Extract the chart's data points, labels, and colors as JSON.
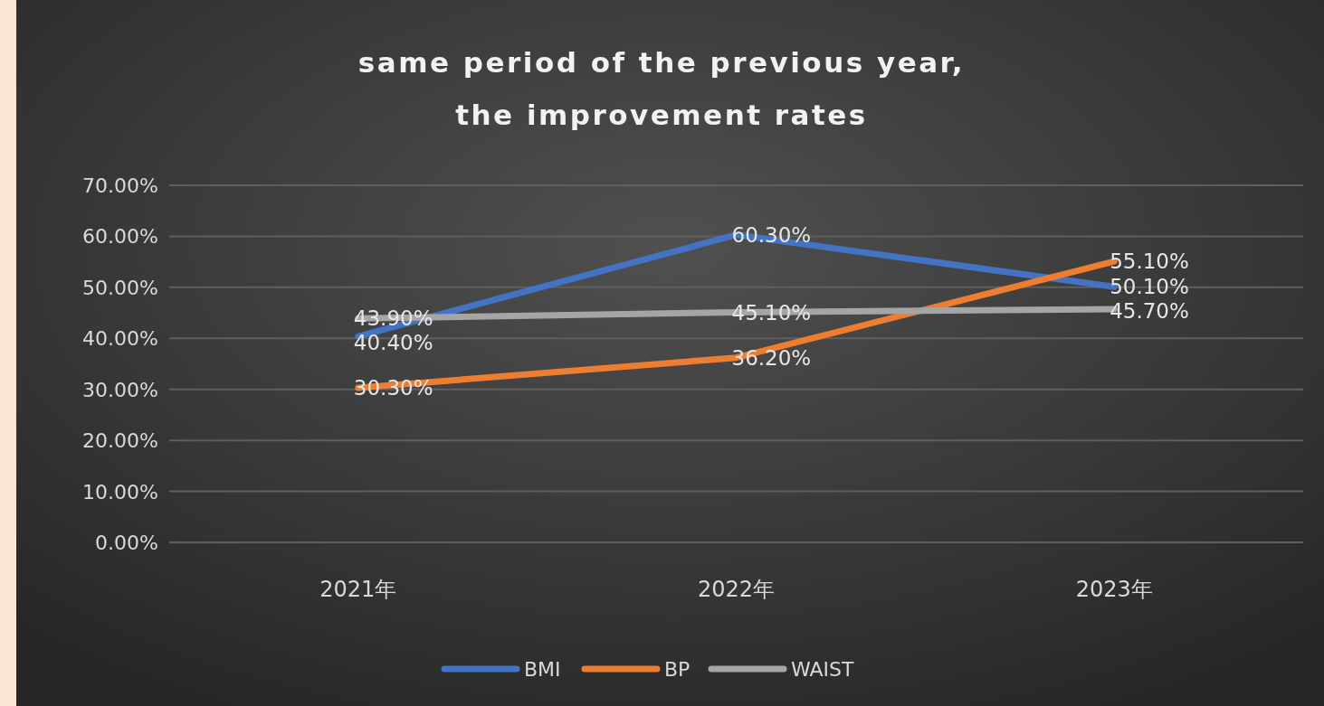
{
  "chart_data": {
    "type": "line",
    "title": "same period of the previous year,\nthe improvement rates",
    "categories": [
      "2021年",
      "2022年",
      "2023年"
    ],
    "series": [
      {
        "name": "BMI",
        "color": "#4472c4",
        "values": [
          40.4,
          60.3,
          50.1
        ],
        "value_labels": [
          "40.40%",
          "60.30%",
          "50.10%"
        ]
      },
      {
        "name": "BP",
        "color": "#ed7d31",
        "values": [
          30.3,
          36.2,
          55.1
        ],
        "value_labels": [
          "30.30%",
          "36.20%",
          "55.10%"
        ]
      },
      {
        "name": "WAIST",
        "color": "#a5a5a5",
        "values": [
          43.9,
          45.1,
          45.7
        ],
        "value_labels": [
          "43.90%",
          "45.10%",
          "45.70%"
        ]
      }
    ],
    "ylim": [
      0,
      70
    ],
    "yticks": [
      {
        "value": 0,
        "label": "0.00%"
      },
      {
        "value": 10,
        "label": "10.00%"
      },
      {
        "value": 20,
        "label": "20.00%"
      },
      {
        "value": 30,
        "label": "30.00%"
      },
      {
        "value": 40,
        "label": "40.00%"
      },
      {
        "value": 50,
        "label": "50.00%"
      },
      {
        "value": 60,
        "label": "60.00%"
      },
      {
        "value": 70,
        "label": "70.00%"
      }
    ],
    "grid": "y",
    "legend": "bottom",
    "line_style": "solid"
  }
}
